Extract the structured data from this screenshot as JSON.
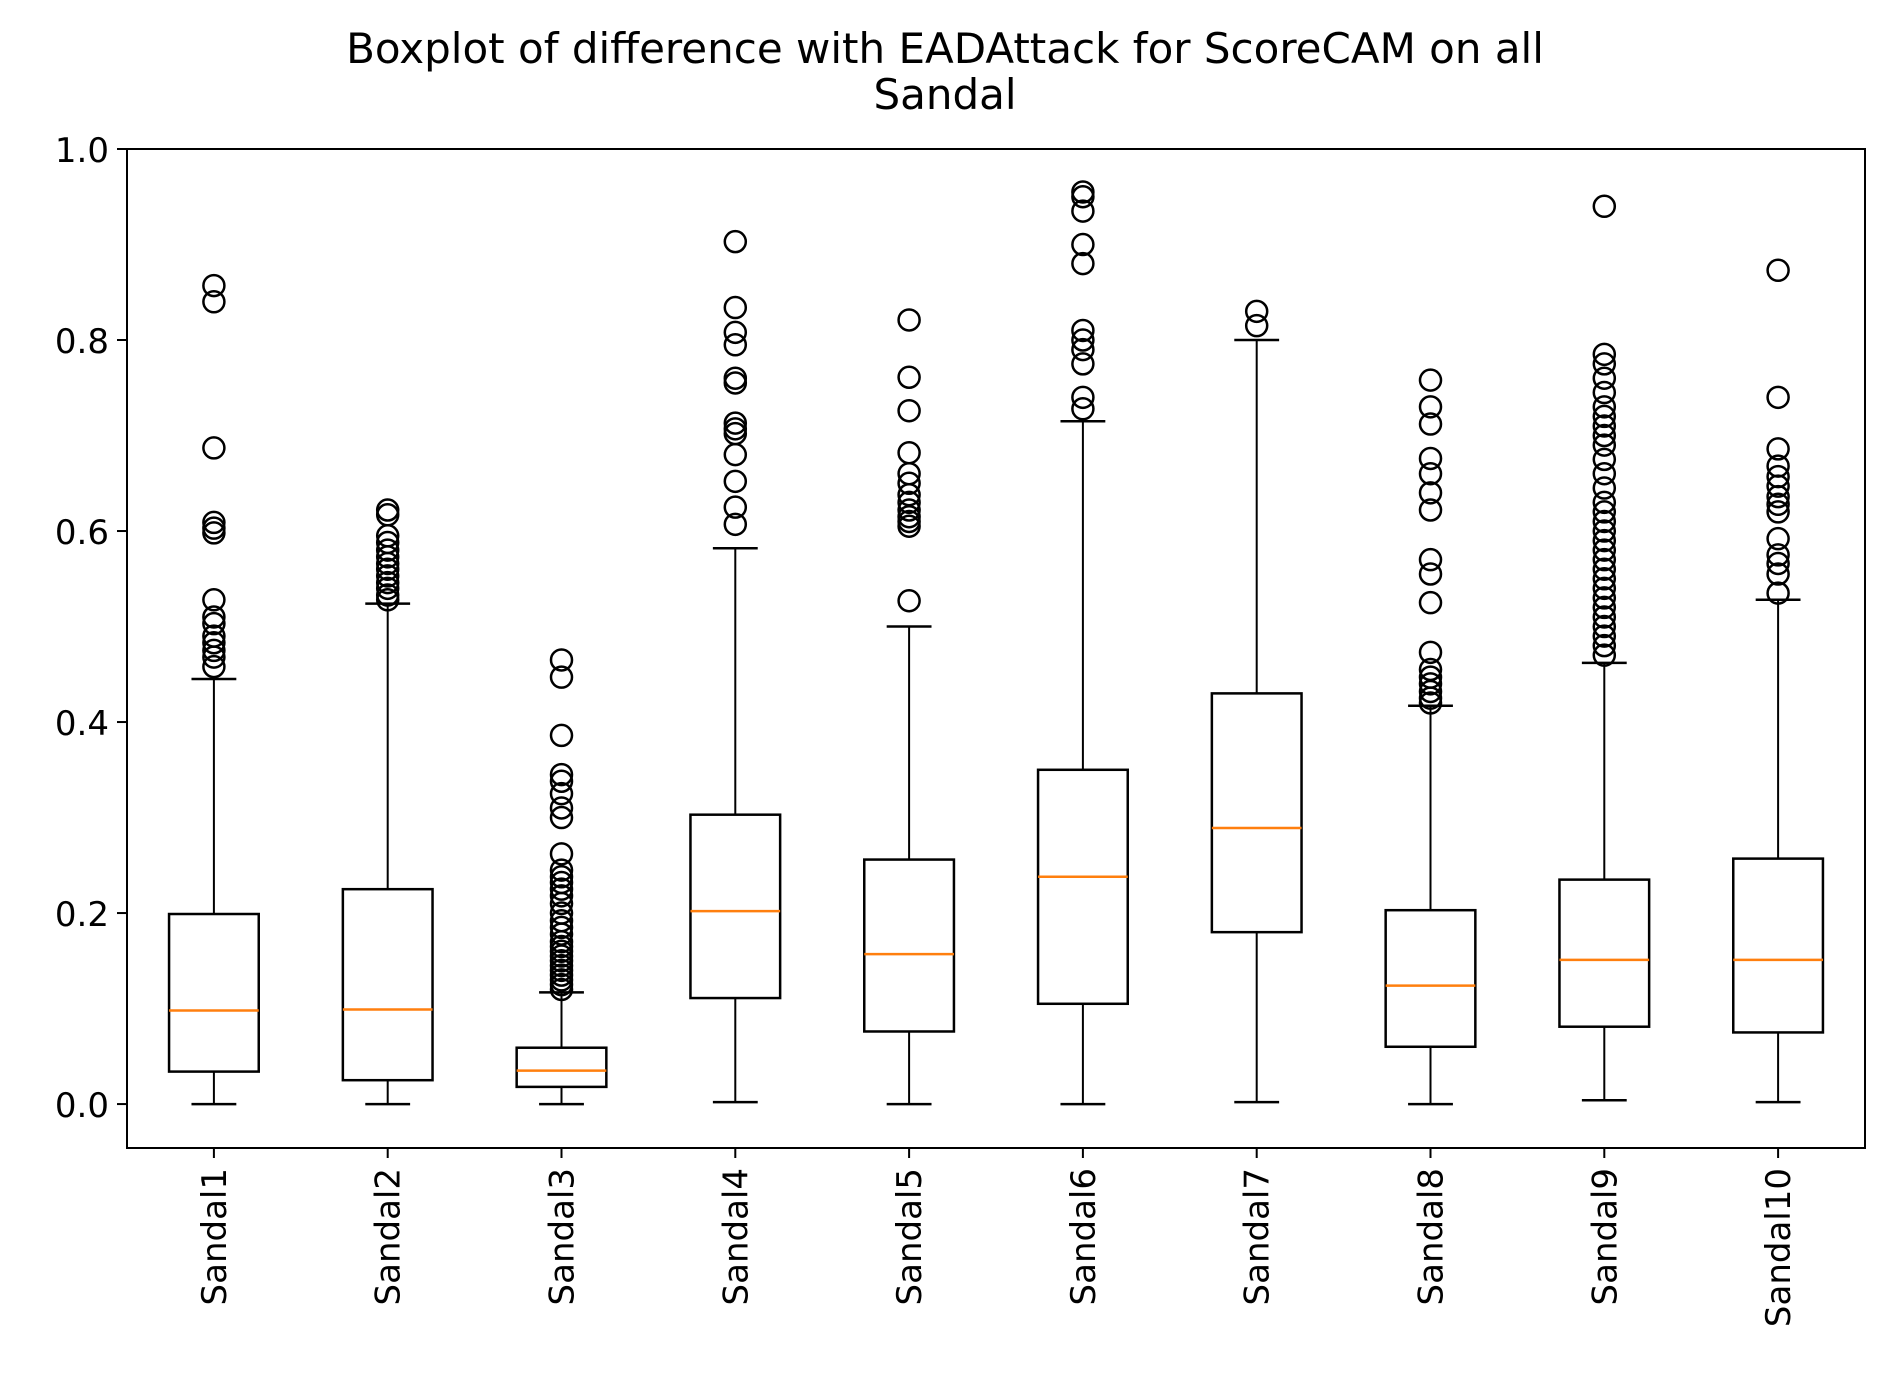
{
  "chart_data": {
    "type": "boxplot",
    "title_line1": "Boxplot of difference with EADAttack for ScoreCAM on all",
    "title_line2": "Sandal",
    "xlabel": "",
    "ylabel": "",
    "ylim": [
      -0.046,
      1.0
    ],
    "yticks": [
      0.0,
      0.2,
      0.4,
      0.6,
      0.8,
      1.0
    ],
    "ytick_labels": [
      "0.0",
      "0.2",
      "0.4",
      "0.6",
      "0.8",
      "1.0"
    ],
    "grid": false,
    "categories": [
      "Sandal1",
      "Sandal2",
      "Sandal3",
      "Sandal4",
      "Sandal5",
      "Sandal6",
      "Sandal7",
      "Sandal8",
      "Sandal9",
      "Sandal10"
    ],
    "boxes": [
      {
        "min": 0.0,
        "q1": 0.034,
        "median": 0.098,
        "q3": 0.199,
        "max": 0.445,
        "outliers": [
          0.857,
          0.84,
          0.687,
          0.609,
          0.603,
          0.598,
          0.528,
          0.51,
          0.503,
          0.49,
          0.483,
          0.475,
          0.468,
          0.458
        ]
      },
      {
        "min": 0.0,
        "q1": 0.025,
        "median": 0.099,
        "q3": 0.225,
        "max": 0.524,
        "outliers": [
          0.622,
          0.617,
          0.595,
          0.588,
          0.58,
          0.573,
          0.566,
          0.56,
          0.553,
          0.546,
          0.54,
          0.533,
          0.528
        ]
      },
      {
        "min": 0.0,
        "q1": 0.018,
        "median": 0.035,
        "q3": 0.059,
        "max": 0.117,
        "outliers": [
          0.465,
          0.447,
          0.386,
          0.345,
          0.338,
          0.325,
          0.31,
          0.3,
          0.262,
          0.245,
          0.238,
          0.232,
          0.225,
          0.218,
          0.21,
          0.2,
          0.192,
          0.185,
          0.178,
          0.17,
          0.165,
          0.16,
          0.155,
          0.15,
          0.145,
          0.14,
          0.135,
          0.13,
          0.125,
          0.12
        ]
      },
      {
        "min": 0.002,
        "q1": 0.111,
        "median": 0.202,
        "q3": 0.303,
        "max": 0.582,
        "outliers": [
          0.903,
          0.834,
          0.808,
          0.795,
          0.76,
          0.755,
          0.713,
          0.707,
          0.702,
          0.68,
          0.652,
          0.625,
          0.607
        ]
      },
      {
        "min": 0.0,
        "q1": 0.076,
        "median": 0.157,
        "q3": 0.256,
        "max": 0.5,
        "outliers": [
          0.821,
          0.761,
          0.726,
          0.682,
          0.66,
          0.65,
          0.638,
          0.63,
          0.622,
          0.615,
          0.61,
          0.605,
          0.527
        ]
      },
      {
        "min": 0.0,
        "q1": 0.105,
        "median": 0.238,
        "q3": 0.35,
        "max": 0.715,
        "outliers": [
          0.955,
          0.95,
          0.935,
          0.9,
          0.88,
          0.81,
          0.8,
          0.79,
          0.775,
          0.74,
          0.728
        ]
      },
      {
        "min": 0.002,
        "q1": 0.18,
        "median": 0.289,
        "q3": 0.43,
        "max": 0.8,
        "outliers": [
          0.83,
          0.815
        ]
      },
      {
        "min": 0.0,
        "q1": 0.06,
        "median": 0.124,
        "q3": 0.203,
        "max": 0.417,
        "outliers": [
          0.758,
          0.73,
          0.712,
          0.676,
          0.66,
          0.64,
          0.622,
          0.57,
          0.555,
          0.525,
          0.473,
          0.455,
          0.447,
          0.44,
          0.432,
          0.425,
          0.42
        ]
      },
      {
        "min": 0.004,
        "q1": 0.081,
        "median": 0.151,
        "q3": 0.235,
        "max": 0.462,
        "outliers": [
          0.94,
          0.785,
          0.775,
          0.76,
          0.745,
          0.73,
          0.72,
          0.71,
          0.7,
          0.69,
          0.675,
          0.66,
          0.645,
          0.63,
          0.62,
          0.61,
          0.6,
          0.59,
          0.58,
          0.57,
          0.56,
          0.55,
          0.54,
          0.53,
          0.52,
          0.51,
          0.5,
          0.49,
          0.48,
          0.47
        ]
      },
      {
        "min": 0.002,
        "q1": 0.075,
        "median": 0.151,
        "q3": 0.257,
        "max": 0.528,
        "outliers": [
          0.873,
          0.74,
          0.686,
          0.668,
          0.657,
          0.647,
          0.636,
          0.628,
          0.62,
          0.592,
          0.575,
          0.566,
          0.555,
          0.535
        ]
      }
    ],
    "colors": {
      "box": "#000000",
      "median": "#ff7f0e",
      "whisker": "#000000",
      "flier": "#000000",
      "background": "#ffffff"
    }
  }
}
